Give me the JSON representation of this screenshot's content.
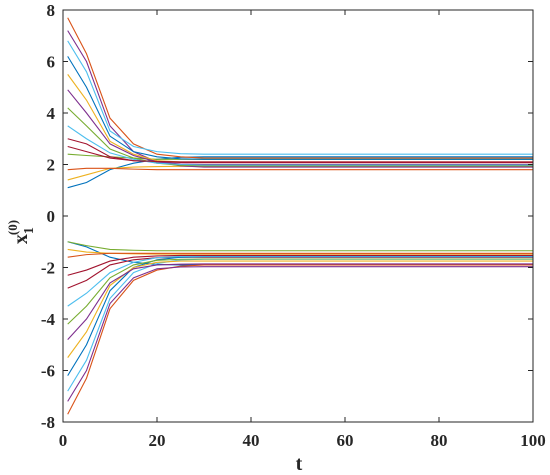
{
  "chart_data": {
    "type": "line",
    "title": "",
    "xlabel": "t",
    "ylabel": {
      "base": "x",
      "sub": "1",
      "sup": "(0)"
    },
    "xlim": [
      0,
      100
    ],
    "ylim": [
      -8,
      8
    ],
    "xticks": [
      0,
      20,
      40,
      60,
      80,
      100
    ],
    "yticks": [
      -8,
      -6,
      -4,
      -2,
      0,
      2,
      4,
      6,
      8
    ],
    "grid": false,
    "legend": "none",
    "x_samples": [
      1,
      5,
      10,
      15,
      20,
      25,
      30,
      40,
      60,
      80,
      100
    ],
    "series": [
      {
        "color": "#0072BD",
        "values": [
          1.1,
          1.3,
          1.8,
          2.05,
          2.2,
          2.28,
          2.3,
          2.3,
          2.3,
          2.3,
          2.3
        ]
      },
      {
        "color": "#D95319",
        "values": [
          7.7,
          6.3,
          3.8,
          2.8,
          2.4,
          2.3,
          2.25,
          2.25,
          2.25,
          2.25,
          2.25
        ]
      },
      {
        "color": "#EDB120",
        "values": [
          1.4,
          1.6,
          1.85,
          1.9,
          1.92,
          1.93,
          1.93,
          1.93,
          1.93,
          1.93,
          1.93
        ]
      },
      {
        "color": "#7E2F8E",
        "values": [
          7.2,
          6.0,
          3.5,
          2.5,
          2.1,
          1.95,
          1.9,
          1.9,
          1.9,
          1.9,
          1.9
        ]
      },
      {
        "color": "#77AC30",
        "values": [
          2.4,
          2.35,
          2.3,
          2.25,
          2.2,
          2.2,
          2.2,
          2.2,
          2.2,
          2.2,
          2.2
        ]
      },
      {
        "color": "#4DBEEE",
        "values": [
          6.8,
          5.6,
          3.3,
          2.7,
          2.5,
          2.42,
          2.4,
          2.4,
          2.4,
          2.4,
          2.4
        ]
      },
      {
        "color": "#A2142F",
        "values": [
          3.0,
          2.8,
          2.3,
          2.15,
          2.1,
          2.08,
          2.07,
          2.07,
          2.07,
          2.07,
          2.07
        ]
      },
      {
        "color": "#0072BD",
        "values": [
          6.2,
          5.0,
          3.1,
          2.5,
          2.3,
          2.22,
          2.2,
          2.2,
          2.2,
          2.2,
          2.2
        ]
      },
      {
        "color": "#D95319",
        "values": [
          1.8,
          1.85,
          1.85,
          1.82,
          1.8,
          1.8,
          1.8,
          1.8,
          1.8,
          1.8,
          1.8
        ]
      },
      {
        "color": "#EDB120",
        "values": [
          5.5,
          4.5,
          2.9,
          2.4,
          2.15,
          2.1,
          2.1,
          2.1,
          2.1,
          2.1,
          2.1
        ]
      },
      {
        "color": "#7E2F8E",
        "values": [
          4.9,
          4.0,
          2.8,
          2.35,
          2.1,
          2.02,
          2.0,
          2.0,
          2.0,
          2.0,
          2.0
        ]
      },
      {
        "color": "#77AC30",
        "values": [
          4.2,
          3.5,
          2.6,
          2.25,
          2.05,
          1.97,
          1.95,
          1.95,
          1.95,
          1.95,
          1.95
        ]
      },
      {
        "color": "#4DBEEE",
        "values": [
          3.5,
          3.0,
          2.45,
          2.2,
          2.05,
          2.0,
          1.98,
          1.98,
          1.98,
          1.98,
          1.98
        ]
      },
      {
        "color": "#A2142F",
        "values": [
          2.7,
          2.5,
          2.25,
          2.15,
          2.12,
          2.1,
          2.1,
          2.1,
          2.1,
          2.1,
          2.1
        ]
      },
      {
        "color": "#0072BD",
        "values": [
          -1.0,
          -1.2,
          -1.6,
          -1.8,
          -1.88,
          -1.9,
          -1.9,
          -1.9,
          -1.9,
          -1.9,
          -1.9
        ]
      },
      {
        "color": "#D95319",
        "values": [
          -7.7,
          -6.3,
          -3.6,
          -2.5,
          -2.1,
          -1.95,
          -1.9,
          -1.9,
          -1.9,
          -1.9,
          -1.9
        ]
      },
      {
        "color": "#EDB120",
        "values": [
          -1.3,
          -1.4,
          -1.45,
          -1.47,
          -1.48,
          -1.48,
          -1.48,
          -1.48,
          -1.48,
          -1.48,
          -1.48
        ]
      },
      {
        "color": "#7E2F8E",
        "values": [
          -7.2,
          -6.0,
          -3.4,
          -2.4,
          -2.05,
          -1.98,
          -1.97,
          -1.97,
          -1.97,
          -1.97,
          -1.97
        ]
      },
      {
        "color": "#77AC30",
        "values": [
          -1.0,
          -1.15,
          -1.3,
          -1.33,
          -1.35,
          -1.35,
          -1.35,
          -1.35,
          -1.35,
          -1.35,
          -1.35
        ]
      },
      {
        "color": "#4DBEEE",
        "values": [
          -6.8,
          -5.6,
          -3.2,
          -2.2,
          -1.85,
          -1.7,
          -1.68,
          -1.68,
          -1.68,
          -1.68,
          -1.68
        ]
      },
      {
        "color": "#A2142F",
        "values": [
          -2.8,
          -2.5,
          -1.9,
          -1.7,
          -1.62,
          -1.6,
          -1.6,
          -1.6,
          -1.6,
          -1.6,
          -1.6
        ]
      },
      {
        "color": "#0072BD",
        "values": [
          -6.2,
          -5.0,
          -2.9,
          -2.0,
          -1.7,
          -1.6,
          -1.58,
          -1.58,
          -1.58,
          -1.58,
          -1.58
        ]
      },
      {
        "color": "#D95319",
        "values": [
          -1.6,
          -1.5,
          -1.45,
          -1.45,
          -1.45,
          -1.45,
          -1.45,
          -1.45,
          -1.45,
          -1.45,
          -1.45
        ]
      },
      {
        "color": "#EDB120",
        "values": [
          -5.5,
          -4.5,
          -2.7,
          -2.0,
          -1.8,
          -1.75,
          -1.75,
          -1.75,
          -1.75,
          -1.75,
          -1.75
        ]
      },
      {
        "color": "#7E2F8E",
        "values": [
          -4.8,
          -4.0,
          -2.6,
          -2.05,
          -1.9,
          -1.87,
          -1.86,
          -1.86,
          -1.86,
          -1.86,
          -1.86
        ]
      },
      {
        "color": "#77AC30",
        "values": [
          -4.2,
          -3.5,
          -2.4,
          -1.9,
          -1.72,
          -1.68,
          -1.67,
          -1.67,
          -1.67,
          -1.67,
          -1.67
        ]
      },
      {
        "color": "#4DBEEE",
        "values": [
          -3.5,
          -3.0,
          -2.2,
          -1.8,
          -1.62,
          -1.57,
          -1.56,
          -1.56,
          -1.56,
          -1.56,
          -1.56
        ]
      },
      {
        "color": "#A2142F",
        "values": [
          -2.3,
          -2.1,
          -1.75,
          -1.6,
          -1.55,
          -1.53,
          -1.53,
          -1.53,
          -1.53,
          -1.53,
          -1.53
        ]
      }
    ]
  }
}
